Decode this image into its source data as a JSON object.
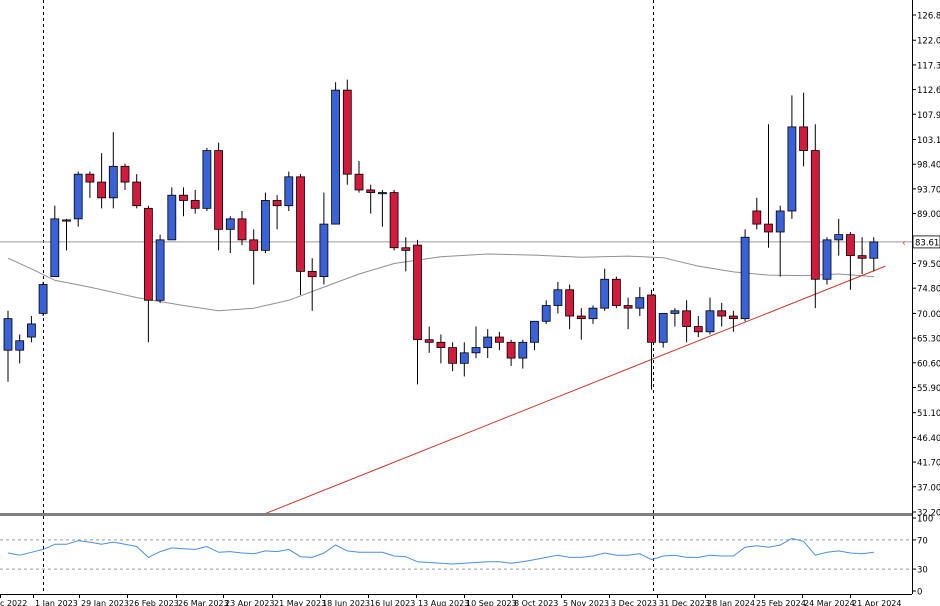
{
  "chart_data": [
    {
      "type": "candlestick",
      "price_axis": {
        "min": 32.2,
        "max": 126.8,
        "ticks": [
          "126.80",
          "122.00",
          "117.30",
          "112.60",
          "107.90",
          "103.10",
          "98.40",
          "93.70",
          "89.00",
          "84.30",
          "79.50",
          "74.80",
          "70.00",
          "65.30",
          "60.60",
          "55.90",
          "51.10",
          "46.40",
          "41.70",
          "37.00",
          "32.20"
        ],
        "current_price": "83.61"
      },
      "date_labels": [
        "c 2022",
        "1 Jan 2023",
        "29 Jan 2023",
        "26 Feb 2023",
        "26 Mar 2023",
        "23 Apr 2023",
        "21 May 2023",
        "18 Jun 2023",
        "16 Jul 2023",
        "13 Aug 2023",
        "10 Sep 2023",
        "8 Oct 2023",
        "5 Nov 2023",
        "3 Dec 2023",
        "31 Dec 2023",
        "28 Jan 2024",
        "25 Feb 2024",
        "24 Mar 2024",
        "21 Apr 2024"
      ],
      "colors": {
        "bull": "#3a62d6",
        "bear": "#d21a3c",
        "wick": "#000000",
        "ma": "#909090",
        "trendline": "#c0392b",
        "current_line": "#9a9a9a"
      },
      "candles": [
        {
          "date": "2022-12-11",
          "o": 63.0,
          "h": 70.5,
          "l": 57.0,
          "c": 69.0
        },
        {
          "date": "2022-12-18",
          "o": 63.0,
          "h": 66.0,
          "l": 60.5,
          "c": 64.8
        },
        {
          "date": "2022-12-25",
          "o": 65.5,
          "h": 69.5,
          "l": 64.5,
          "c": 68.0
        },
        {
          "date": "2023-01-01",
          "o": 70.0,
          "h": 76.0,
          "l": 69.5,
          "c": 75.5
        },
        {
          "date": "2023-01-08",
          "o": 77.0,
          "h": 90.5,
          "l": 77.0,
          "c": 88.0
        },
        {
          "date": "2023-01-15",
          "o": 87.8,
          "h": 88.0,
          "l": 82.0,
          "c": 87.6
        },
        {
          "date": "2023-01-22",
          "o": 88.0,
          "h": 97.0,
          "l": 86.5,
          "c": 96.5
        },
        {
          "date": "2023-01-29",
          "o": 96.5,
          "h": 97.0,
          "l": 92.0,
          "c": 95.0
        },
        {
          "date": "2023-02-05",
          "o": 95.0,
          "h": 100.5,
          "l": 90.0,
          "c": 92.0
        },
        {
          "date": "2023-02-12",
          "o": 92.0,
          "h": 104.5,
          "l": 90.0,
          "c": 98.0
        },
        {
          "date": "2023-02-19",
          "o": 98.0,
          "h": 98.5,
          "l": 93.5,
          "c": 95.0
        },
        {
          "date": "2023-02-26",
          "o": 95.0,
          "h": 96.5,
          "l": 90.0,
          "c": 90.5
        },
        {
          "date": "2023-03-05",
          "o": 90.0,
          "h": 90.5,
          "l": 64.5,
          "c": 72.5
        },
        {
          "date": "2023-03-12",
          "o": 72.5,
          "h": 85.0,
          "l": 72.0,
          "c": 84.0
        },
        {
          "date": "2023-03-19",
          "o": 84.0,
          "h": 94.0,
          "l": 84.0,
          "c": 92.5
        },
        {
          "date": "2023-03-26",
          "o": 92.5,
          "h": 94.0,
          "l": 88.5,
          "c": 91.5
        },
        {
          "date": "2023-04-02",
          "o": 91.5,
          "h": 93.5,
          "l": 89.0,
          "c": 90.0
        },
        {
          "date": "2023-04-09",
          "o": 90.0,
          "h": 101.5,
          "l": 89.5,
          "c": 101.0
        },
        {
          "date": "2023-04-16",
          "o": 101.0,
          "h": 102.5,
          "l": 82.0,
          "c": 86.0
        },
        {
          "date": "2023-04-23",
          "o": 86.0,
          "h": 88.5,
          "l": 81.5,
          "c": 88.0
        },
        {
          "date": "2023-04-30",
          "o": 88.0,
          "h": 89.5,
          "l": 83.0,
          "c": 84.0
        },
        {
          "date": "2023-05-07",
          "o": 84.0,
          "h": 86.0,
          "l": 75.5,
          "c": 82.0
        },
        {
          "date": "2023-05-14",
          "o": 82.0,
          "h": 93.0,
          "l": 81.5,
          "c": 91.5
        },
        {
          "date": "2023-05-21",
          "o": 91.5,
          "h": 92.5,
          "l": 86.0,
          "c": 90.5
        },
        {
          "date": "2023-05-28",
          "o": 90.5,
          "h": 97.0,
          "l": 89.5,
          "c": 96.0
        },
        {
          "date": "2023-06-04",
          "o": 96.0,
          "h": 96.5,
          "l": 73.5,
          "c": 78.0
        },
        {
          "date": "2023-06-11",
          "o": 78.0,
          "h": 80.5,
          "l": 70.5,
          "c": 77.0
        },
        {
          "date": "2023-06-18",
          "o": 77.0,
          "h": 93.0,
          "l": 75.5,
          "c": 87.0
        },
        {
          "date": "2023-06-25",
          "o": 87.0,
          "h": 114.0,
          "l": 87.0,
          "c": 112.5
        },
        {
          "date": "2023-07-02",
          "o": 112.5,
          "h": 114.5,
          "l": 94.5,
          "c": 96.5
        },
        {
          "date": "2023-07-09",
          "o": 96.5,
          "h": 99.0,
          "l": 93.0,
          "c": 93.5
        },
        {
          "date": "2023-07-16",
          "o": 93.5,
          "h": 94.5,
          "l": 89.0,
          "c": 93.0
        },
        {
          "date": "2023-07-23",
          "o": 93.0,
          "h": 93.5,
          "l": 86.5,
          "c": 93.0
        },
        {
          "date": "2023-07-30",
          "o": 93.0,
          "h": 93.5,
          "l": 82.0,
          "c": 82.5
        },
        {
          "date": "2023-08-06",
          "o": 82.5,
          "h": 84.5,
          "l": 78.0,
          "c": 82.0
        },
        {
          "date": "2023-08-13",
          "o": 83.0,
          "h": 84.0,
          "l": 56.5,
          "c": 65.0
        },
        {
          "date": "2023-08-20",
          "o": 65.0,
          "h": 67.5,
          "l": 62.5,
          "c": 64.5
        },
        {
          "date": "2023-08-27",
          "o": 64.5,
          "h": 66.0,
          "l": 60.5,
          "c": 63.5
        },
        {
          "date": "2023-09-03",
          "o": 63.5,
          "h": 64.5,
          "l": 59.0,
          "c": 60.5
        },
        {
          "date": "2023-09-10",
          "o": 60.5,
          "h": 64.5,
          "l": 58.0,
          "c": 62.5
        },
        {
          "date": "2023-09-17",
          "o": 62.5,
          "h": 67.5,
          "l": 61.5,
          "c": 63.5
        },
        {
          "date": "2023-09-24",
          "o": 63.5,
          "h": 67.0,
          "l": 61.5,
          "c": 65.5
        },
        {
          "date": "2023-10-01",
          "o": 65.5,
          "h": 66.5,
          "l": 63.0,
          "c": 64.5
        },
        {
          "date": "2023-10-08",
          "o": 64.5,
          "h": 65.0,
          "l": 60.0,
          "c": 61.5
        },
        {
          "date": "2023-10-15",
          "o": 61.5,
          "h": 65.0,
          "l": 59.5,
          "c": 64.5
        },
        {
          "date": "2023-10-22",
          "o": 64.5,
          "h": 68.5,
          "l": 63.0,
          "c": 68.5
        },
        {
          "date": "2023-10-29",
          "o": 68.5,
          "h": 72.5,
          "l": 68.0,
          "c": 71.5
        },
        {
          "date": "2023-11-05",
          "o": 71.5,
          "h": 76.0,
          "l": 70.0,
          "c": 74.5
        },
        {
          "date": "2023-11-12",
          "o": 74.5,
          "h": 75.5,
          "l": 67.0,
          "c": 69.5
        },
        {
          "date": "2023-11-19",
          "o": 69.5,
          "h": 71.0,
          "l": 65.0,
          "c": 69.0
        },
        {
          "date": "2023-11-26",
          "o": 69.0,
          "h": 71.5,
          "l": 68.0,
          "c": 71.0
        },
        {
          "date": "2023-12-03",
          "o": 71.0,
          "h": 78.5,
          "l": 70.5,
          "c": 76.5
        },
        {
          "date": "2023-12-10",
          "o": 76.5,
          "h": 77.0,
          "l": 71.0,
          "c": 71.5
        },
        {
          "date": "2023-12-17",
          "o": 71.5,
          "h": 73.0,
          "l": 67.0,
          "c": 71.0
        },
        {
          "date": "2023-12-24",
          "o": 71.0,
          "h": 75.0,
          "l": 69.5,
          "c": 73.0
        },
        {
          "date": "2023-12-31",
          "o": 73.5,
          "h": 74.5,
          "l": 55.5,
          "c": 64.5
        },
        {
          "date": "2024-01-07",
          "o": 64.5,
          "h": 70.0,
          "l": 63.5,
          "c": 70.0
        },
        {
          "date": "2024-01-14",
          "o": 70.0,
          "h": 71.0,
          "l": 67.5,
          "c": 70.5
        },
        {
          "date": "2024-01-21",
          "o": 70.5,
          "h": 72.5,
          "l": 64.5,
          "c": 67.5
        },
        {
          "date": "2024-01-28",
          "o": 67.5,
          "h": 69.5,
          "l": 65.5,
          "c": 66.5
        },
        {
          "date": "2024-02-04",
          "o": 66.5,
          "h": 73.0,
          "l": 66.0,
          "c": 70.5
        },
        {
          "date": "2024-02-11",
          "o": 70.5,
          "h": 72.0,
          "l": 67.5,
          "c": 69.5
        },
        {
          "date": "2024-02-18",
          "o": 69.5,
          "h": 70.5,
          "l": 66.5,
          "c": 69.0
        },
        {
          "date": "2024-02-25",
          "o": 69.0,
          "h": 86.0,
          "l": 68.5,
          "c": 84.5
        },
        {
          "date": "2024-03-03",
          "o": 89.5,
          "h": 92.0,
          "l": 86.0,
          "c": 87.0
        },
        {
          "date": "2024-03-10",
          "o": 87.0,
          "h": 106.0,
          "l": 82.5,
          "c": 85.5
        },
        {
          "date": "2024-03-17",
          "o": 85.5,
          "h": 90.5,
          "l": 77.0,
          "c": 89.5
        },
        {
          "date": "2024-03-24",
          "o": 89.5,
          "h": 111.5,
          "l": 88.0,
          "c": 105.5
        },
        {
          "date": "2024-03-31",
          "o": 105.5,
          "h": 112.0,
          "l": 98.0,
          "c": 101.0
        },
        {
          "date": "2024-04-07",
          "o": 101.0,
          "h": 106.0,
          "l": 71.0,
          "c": 76.5
        },
        {
          "date": "2024-04-14",
          "o": 76.5,
          "h": 84.5,
          "l": 75.5,
          "c": 84.0
        },
        {
          "date": "2024-04-21",
          "o": 84.0,
          "h": 88.0,
          "l": 81.0,
          "c": 85.0
        },
        {
          "date": "2024-04-28",
          "o": 85.0,
          "h": 85.5,
          "l": 74.5,
          "c": 81.0
        },
        {
          "date": "2024-05-05",
          "o": 81.0,
          "h": 84.5,
          "l": 77.5,
          "c": 80.5
        },
        {
          "date": "2024-05-12",
          "o": 80.5,
          "h": 84.5,
          "l": 78.0,
          "c": 83.6
        }
      ],
      "moving_average": [
        {
          "date": "2022-12-11",
          "v": 80.5
        },
        {
          "date": "2022-12-25",
          "v": 78.5
        },
        {
          "date": "2023-01-08",
          "v": 76.3
        },
        {
          "date": "2023-01-29",
          "v": 75.0
        },
        {
          "date": "2023-02-26",
          "v": 73.0
        },
        {
          "date": "2023-03-26",
          "v": 71.5
        },
        {
          "date": "2023-04-16",
          "v": 70.5
        },
        {
          "date": "2023-05-07",
          "v": 71.0
        },
        {
          "date": "2023-05-28",
          "v": 72.5
        },
        {
          "date": "2023-06-18",
          "v": 75.0
        },
        {
          "date": "2023-07-09",
          "v": 77.5
        },
        {
          "date": "2023-07-30",
          "v": 79.5
        },
        {
          "date": "2023-08-27",
          "v": 80.8
        },
        {
          "date": "2023-09-24",
          "v": 81.3
        },
        {
          "date": "2023-10-22",
          "v": 81.1
        },
        {
          "date": "2023-11-19",
          "v": 80.7
        },
        {
          "date": "2023-12-17",
          "v": 80.9
        },
        {
          "date": "2024-01-07",
          "v": 80.6
        },
        {
          "date": "2024-01-28",
          "v": 79.0
        },
        {
          "date": "2024-02-18",
          "v": 77.9
        },
        {
          "date": "2024-03-10",
          "v": 77.3
        },
        {
          "date": "2024-03-31",
          "v": 77.2
        },
        {
          "date": "2024-04-21",
          "v": 77.5
        },
        {
          "date": "2024-05-12",
          "v": 77.0
        }
      ],
      "trendline": {
        "start": {
          "date": "2023-05-14",
          "v": 31.9
        },
        "end": {
          "date": "2024-05-19",
          "v": 79.0
        }
      }
    },
    {
      "type": "line",
      "indicator_axis": {
        "min": 0,
        "max": 100,
        "ticks": [
          "100",
          "70",
          "30",
          "0"
        ],
        "levels": [
          70,
          30
        ]
      },
      "series": [
        {
          "date": "2022-12-11",
          "v": 52
        },
        {
          "date": "2022-12-18",
          "v": 49
        },
        {
          "date": "2022-12-25",
          "v": 53
        },
        {
          "date": "2023-01-01",
          "v": 57
        },
        {
          "date": "2023-01-08",
          "v": 64
        },
        {
          "date": "2023-01-15",
          "v": 64
        },
        {
          "date": "2023-01-22",
          "v": 69
        },
        {
          "date": "2023-01-29",
          "v": 67
        },
        {
          "date": "2023-02-05",
          "v": 64
        },
        {
          "date": "2023-02-12",
          "v": 67
        },
        {
          "date": "2023-02-19",
          "v": 64
        },
        {
          "date": "2023-02-26",
          "v": 61
        },
        {
          "date": "2023-03-05",
          "v": 46
        },
        {
          "date": "2023-03-12",
          "v": 54
        },
        {
          "date": "2023-03-19",
          "v": 59
        },
        {
          "date": "2023-03-26",
          "v": 58
        },
        {
          "date": "2023-04-02",
          "v": 57
        },
        {
          "date": "2023-04-09",
          "v": 61
        },
        {
          "date": "2023-04-16",
          "v": 53
        },
        {
          "date": "2023-04-23",
          "v": 54
        },
        {
          "date": "2023-04-30",
          "v": 52
        },
        {
          "date": "2023-05-07",
          "v": 51
        },
        {
          "date": "2023-05-14",
          "v": 55
        },
        {
          "date": "2023-05-21",
          "v": 54
        },
        {
          "date": "2023-05-28",
          "v": 57
        },
        {
          "date": "2023-06-04",
          "v": 47
        },
        {
          "date": "2023-06-11",
          "v": 46
        },
        {
          "date": "2023-06-18",
          "v": 52
        },
        {
          "date": "2023-06-25",
          "v": 63
        },
        {
          "date": "2023-07-02",
          "v": 55
        },
        {
          "date": "2023-07-09",
          "v": 53
        },
        {
          "date": "2023-07-16",
          "v": 53
        },
        {
          "date": "2023-07-23",
          "v": 53
        },
        {
          "date": "2023-07-30",
          "v": 48
        },
        {
          "date": "2023-08-06",
          "v": 47
        },
        {
          "date": "2023-08-13",
          "v": 40
        },
        {
          "date": "2023-08-20",
          "v": 39
        },
        {
          "date": "2023-08-27",
          "v": 38
        },
        {
          "date": "2023-09-03",
          "v": 37
        },
        {
          "date": "2023-09-10",
          "v": 38
        },
        {
          "date": "2023-09-17",
          "v": 39
        },
        {
          "date": "2023-09-24",
          "v": 40
        },
        {
          "date": "2023-10-01",
          "v": 40
        },
        {
          "date": "2023-10-08",
          "v": 38
        },
        {
          "date": "2023-10-15",
          "v": 40
        },
        {
          "date": "2023-10-22",
          "v": 43
        },
        {
          "date": "2023-10-29",
          "v": 46
        },
        {
          "date": "2023-11-05",
          "v": 49
        },
        {
          "date": "2023-11-12",
          "v": 46
        },
        {
          "date": "2023-11-19",
          "v": 46
        },
        {
          "date": "2023-11-26",
          "v": 48
        },
        {
          "date": "2023-12-03",
          "v": 52
        },
        {
          "date": "2023-12-10",
          "v": 49
        },
        {
          "date": "2023-12-17",
          "v": 49
        },
        {
          "date": "2023-12-24",
          "v": 51
        },
        {
          "date": "2023-12-31",
          "v": 43
        },
        {
          "date": "2024-01-07",
          "v": 48
        },
        {
          "date": "2024-01-14",
          "v": 49
        },
        {
          "date": "2024-01-21",
          "v": 46
        },
        {
          "date": "2024-01-28",
          "v": 46
        },
        {
          "date": "2024-02-04",
          "v": 49
        },
        {
          "date": "2024-02-11",
          "v": 48
        },
        {
          "date": "2024-02-18",
          "v": 48
        },
        {
          "date": "2024-02-25",
          "v": 60
        },
        {
          "date": "2024-03-03",
          "v": 62
        },
        {
          "date": "2024-03-10",
          "v": 60
        },
        {
          "date": "2024-03-17",
          "v": 63
        },
        {
          "date": "2024-03-24",
          "v": 72
        },
        {
          "date": "2024-03-31",
          "v": 68
        },
        {
          "date": "2024-04-07",
          "v": 49
        },
        {
          "date": "2024-04-14",
          "v": 53
        },
        {
          "date": "2024-04-21",
          "v": 55
        },
        {
          "date": "2024-04-28",
          "v": 52
        },
        {
          "date": "2024-05-05",
          "v": 51
        },
        {
          "date": "2024-05-12",
          "v": 53
        }
      ]
    }
  ]
}
